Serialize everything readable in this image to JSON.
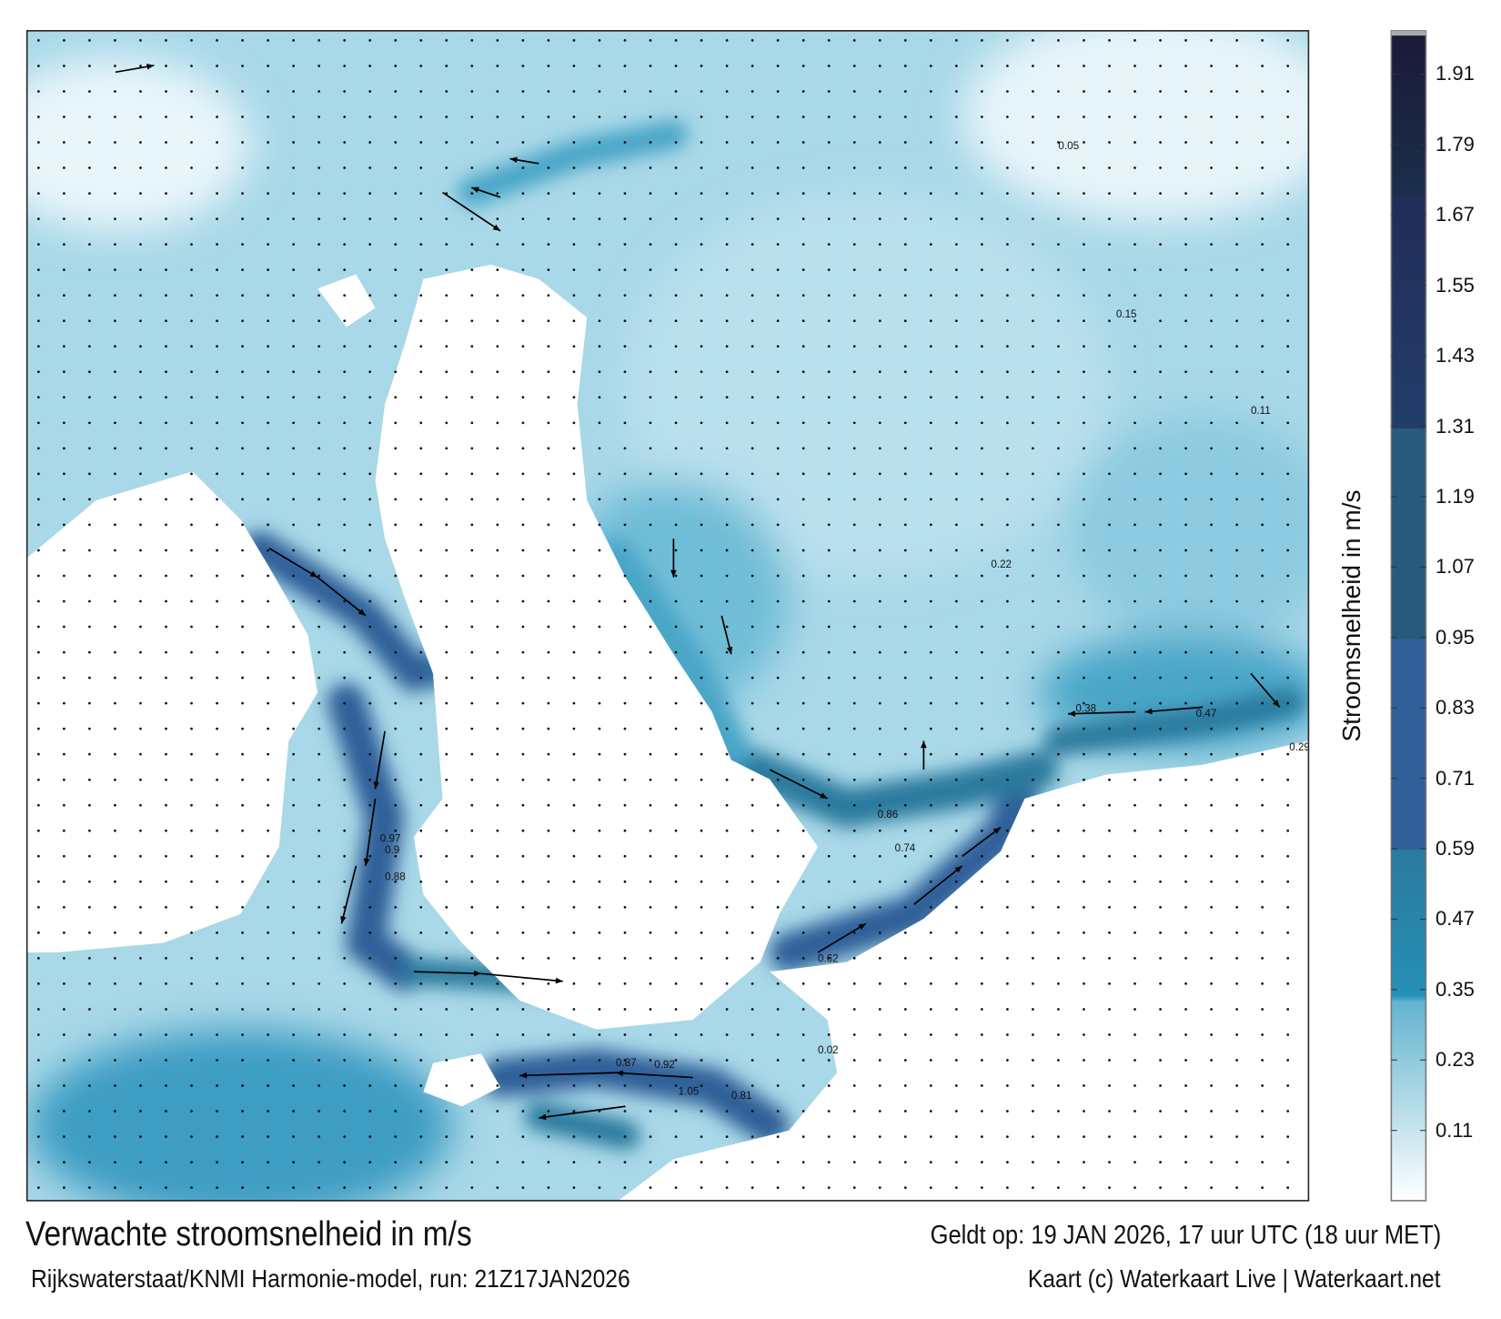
{
  "map": {
    "title": "Verwachte stroomsnelheid in m/s",
    "valid_time": "Geldt op: 19 JAN 2026, 17 uur UTC (18 uur MET)",
    "source": "Rijkswaterstaat/KNMI Harmonie-model, run: 21Z17JAN2026",
    "credit": "Kaart (c) Waterkaart Live | Waterkaart.net",
    "sample_value_labels": [
      "0.97",
      "0.9",
      "0.88",
      "0.86",
      "0.74",
      "1.05",
      "0.92",
      "0.87",
      "0.81",
      "0.62",
      "0.47",
      "0.38",
      "0.29",
      "0.22",
      "0.15",
      "0.11",
      "0.05",
      "0.02"
    ]
  },
  "colorbar": {
    "title": "Stroomsnelheid in m/s",
    "ticks": [
      "1.91",
      "1.79",
      "1.67",
      "1.55",
      "1.43",
      "1.31",
      "1.19",
      "1.07",
      "0.95",
      "0.83",
      "0.71",
      "0.59",
      "0.47",
      "0.35",
      "0.23",
      "0.11"
    ],
    "colors": {
      "low": "#ffffff",
      "mid_light": "#62b4cf",
      "band_035": "#2590b6",
      "band_059": "#2a7a9e",
      "band_071": "#2f5e98",
      "band_107": "#285a7e",
      "band_131": "#223d6b",
      "band_167": "#1a2e4a",
      "top": "#1a1a38"
    }
  }
}
